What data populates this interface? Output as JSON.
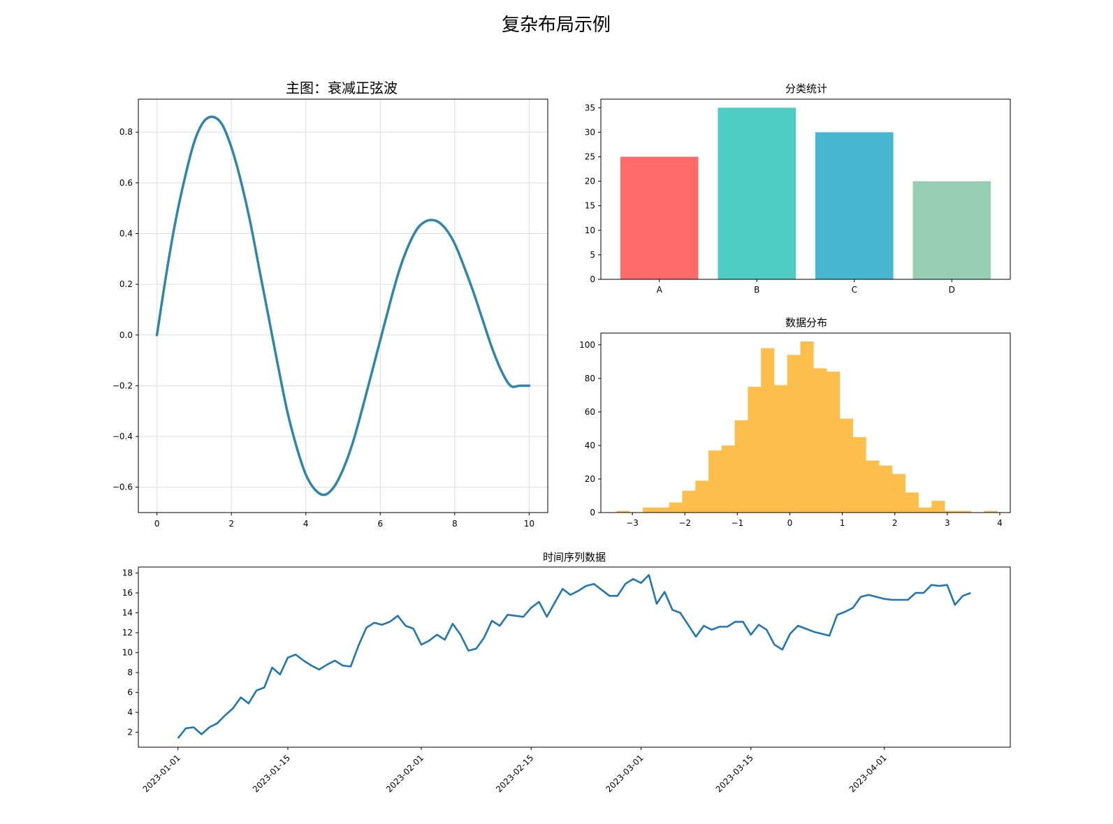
{
  "suptitle": "复杂布局示例",
  "chart_data": [
    {
      "type": "line",
      "title": "主图：衰减正弦波",
      "xlabel": "",
      "ylabel": "",
      "xlim": [
        -0.5,
        10.5
      ],
      "ylim": [
        -0.7,
        0.93
      ],
      "grid": true,
      "color": "#2e86ab",
      "xticks": [
        0,
        2,
        4,
        6,
        8,
        10
      ],
      "yticks": [
        -0.6,
        -0.4,
        -0.2,
        0.0,
        0.2,
        0.4,
        0.6,
        0.8
      ],
      "x": [
        0,
        0.25,
        0.5,
        0.75,
        1.0,
        1.25,
        1.5,
        1.75,
        2.0,
        2.25,
        2.5,
        2.75,
        3.0,
        3.25,
        3.5,
        3.75,
        4.0,
        4.25,
        4.5,
        4.75,
        5.0,
        5.25,
        5.5,
        5.75,
        6.0,
        6.25,
        6.5,
        6.75,
        7.0,
        7.25,
        7.5,
        7.75,
        8.0,
        8.25,
        8.5,
        8.75,
        9.0,
        9.25,
        9.5,
        9.75,
        10.0
      ],
      "y": [
        0.0,
        0.24,
        0.45,
        0.62,
        0.76,
        0.84,
        0.86,
        0.83,
        0.74,
        0.61,
        0.45,
        0.26,
        0.07,
        -0.12,
        -0.3,
        -0.44,
        -0.55,
        -0.61,
        -0.63,
        -0.6,
        -0.53,
        -0.43,
        -0.3,
        -0.16,
        -0.02,
        0.12,
        0.25,
        0.35,
        0.42,
        0.45,
        0.45,
        0.42,
        0.36,
        0.27,
        0.17,
        0.06,
        -0.05,
        -0.14,
        -0.2,
        -0.2,
        -0.2
      ]
    },
    {
      "type": "bar",
      "title": "分类统计",
      "categories": [
        "A",
        "B",
        "C",
        "D"
      ],
      "values": [
        25,
        35,
        30,
        20
      ],
      "colors": [
        "#ff6b6b",
        "#4ecdc4",
        "#45b7d1",
        "#96ceb4"
      ],
      "ylim": [
        0,
        36.75
      ],
      "yticks": [
        0,
        5,
        10,
        15,
        20,
        25,
        30,
        35
      ],
      "grid": false
    },
    {
      "type": "bar",
      "title": "数据分布",
      "bin_edges": [
        -3.3,
        -3.05,
        -2.8,
        -2.55,
        -2.3,
        -2.05,
        -1.8,
        -1.55,
        -1.3,
        -1.05,
        -0.8,
        -0.55,
        -0.3,
        -0.05,
        0.2,
        0.45,
        0.7,
        0.95,
        1.2,
        1.45,
        1.7,
        1.95,
        2.2,
        2.45,
        2.7,
        2.95,
        3.2,
        3.45,
        3.7,
        3.95
      ],
      "counts": [
        1,
        0,
        3,
        3,
        6,
        13,
        19,
        37,
        40,
        55,
        75,
        98,
        76,
        94,
        102,
        86,
        84,
        56,
        45,
        31,
        28,
        23,
        12,
        3,
        7,
        1,
        1,
        0,
        1
      ],
      "color": "#fdbe4b",
      "xlim": [
        -3.6,
        4.2
      ],
      "ylim": [
        0,
        107
      ],
      "xticks": [
        -3,
        -2,
        -1,
        0,
        1,
        2,
        3,
        4
      ],
      "yticks": [
        0,
        20,
        40,
        60,
        80,
        100
      ],
      "grid": false
    },
    {
      "type": "line",
      "title": "时间序列数据",
      "start_date": "2023-01-01",
      "values": [
        1.4,
        2.4,
        2.5,
        1.8,
        2.5,
        2.9,
        3.7,
        4.4,
        5.5,
        4.9,
        6.2,
        6.5,
        8.5,
        7.8,
        9.5,
        9.8,
        9.2,
        8.7,
        8.3,
        8.8,
        9.2,
        8.7,
        8.6,
        10.7,
        12.5,
        13.0,
        12.8,
        13.1,
        13.7,
        12.7,
        12.4,
        10.8,
        11.2,
        11.8,
        11.3,
        12.9,
        11.8,
        10.2,
        10.4,
        11.5,
        13.2,
        12.7,
        13.8,
        13.7,
        13.6,
        14.5,
        15.1,
        13.6,
        15.0,
        16.4,
        15.8,
        16.2,
        16.7,
        16.9,
        16.3,
        15.7,
        15.7,
        16.9,
        17.4,
        17.0,
        17.8,
        14.9,
        16.1,
        14.3,
        14.0,
        12.8,
        11.6,
        12.7,
        12.3,
        12.6,
        12.6,
        13.1,
        13.1,
        11.8,
        12.8,
        12.3,
        10.8,
        10.3,
        11.9,
        12.7,
        12.4,
        12.1,
        11.9,
        11.7,
        13.8,
        14.1,
        14.5,
        15.6,
        15.8,
        15.6,
        15.4,
        15.3,
        15.3,
        15.3,
        16.0,
        16.0,
        16.8,
        16.7,
        16.8,
        14.8,
        15.7,
        16.0
      ],
      "color": "#1f77b4",
      "xticks": [
        "2023-01-01",
        "2023-01-15",
        "2023-02-01",
        "2023-02-15",
        "2023-03-01",
        "2023-03-15",
        "2023-04-01"
      ],
      "yticks": [
        2,
        4,
        6,
        8,
        10,
        12,
        14,
        16,
        18
      ],
      "ylim": [
        0.5,
        18.6
      ],
      "grid": false
    }
  ]
}
